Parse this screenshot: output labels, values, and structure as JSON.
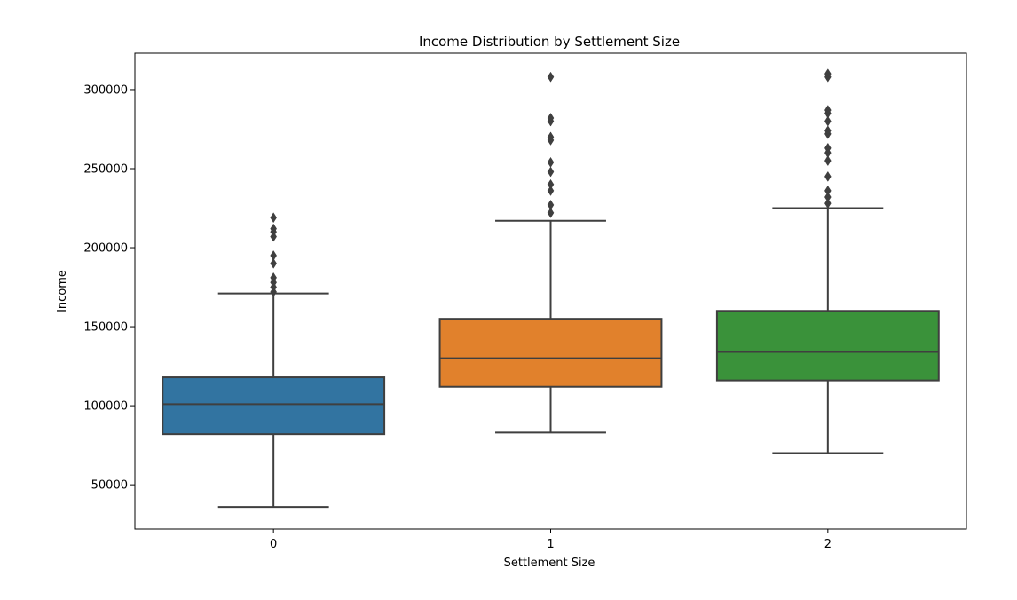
{
  "chart_data": {
    "type": "box",
    "title": "Income Distribution by Settlement Size",
    "xlabel": "Settlement Size",
    "ylabel": "Income",
    "categories": [
      "0",
      "1",
      "2"
    ],
    "ylim": [
      22000,
      323000
    ],
    "yticks": [
      50000,
      100000,
      150000,
      200000,
      250000,
      300000
    ],
    "yticklabels": [
      "50000",
      "100000",
      "150000",
      "200000",
      "250000",
      "300000"
    ],
    "grid": false,
    "legend": "none",
    "boxes": [
      {
        "category": "0",
        "color": "#3274a1",
        "whisker_low": 36000,
        "q1": 82000,
        "median": 101000,
        "q3": 118000,
        "whisker_high": 171000,
        "outliers": [
          172000,
          175000,
          178000,
          181000,
          190000,
          195000,
          207000,
          210000,
          212000,
          219000
        ]
      },
      {
        "category": "1",
        "color": "#e1812c",
        "whisker_low": 83000,
        "q1": 112000,
        "median": 130000,
        "q3": 155000,
        "whisker_high": 217000,
        "outliers": [
          222000,
          227000,
          236000,
          240000,
          248000,
          254000,
          268000,
          270000,
          280000,
          282000,
          308000
        ]
      },
      {
        "category": "2",
        "color": "#3a923a",
        "whisker_low": 70000,
        "q1": 116000,
        "median": 134000,
        "q3": 160000,
        "whisker_high": 225000,
        "outliers": [
          228000,
          232000,
          236000,
          245000,
          255000,
          260000,
          263000,
          272000,
          274000,
          280000,
          285000,
          287000,
          308000,
          310000
        ]
      }
    ],
    "line_color": "#3f3f3f"
  }
}
